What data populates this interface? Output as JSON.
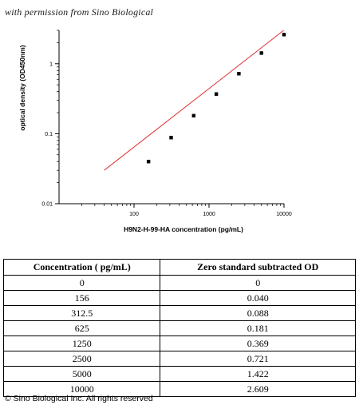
{
  "header": {
    "permission_text": "with permission from Sino Biological"
  },
  "chart_data": {
    "type": "scatter",
    "x_scale": "log",
    "y_scale": "log",
    "xlabel": "H9N2-H-99-HA concentration (pg/mL)",
    "ylabel": "optical density (OD450nm)",
    "xlim": [
      10,
      10000
    ],
    "ylim": [
      0.01,
      3
    ],
    "x_ticks": [
      100,
      1000,
      10000
    ],
    "x_tick_labels": [
      "100",
      "1000",
      "10000"
    ],
    "y_ticks": [
      0.01,
      0.1,
      1
    ],
    "y_tick_labels": [
      "0.01",
      "0.1",
      "1"
    ],
    "points": [
      {
        "x": 156,
        "y": 0.04
      },
      {
        "x": 312.5,
        "y": 0.088
      },
      {
        "x": 625,
        "y": 0.181
      },
      {
        "x": 1250,
        "y": 0.369
      },
      {
        "x": 2500,
        "y": 0.721
      },
      {
        "x": 5000,
        "y": 1.422
      },
      {
        "x": 10000,
        "y": 2.609
      }
    ],
    "fit_line": {
      "x": [
        40,
        9900
      ],
      "y": [
        0.03,
        3.0
      ]
    },
    "marker_color": "#000000",
    "line_color": "#e03030",
    "grid": false
  },
  "table": {
    "headers": [
      "Concentration ( pg/mL)",
      "Zero standard subtracted OD"
    ],
    "rows": [
      [
        "0",
        "0"
      ],
      [
        "156",
        "0.040"
      ],
      [
        "312.5",
        "0.088"
      ],
      [
        "625",
        "0.181"
      ],
      [
        "1250",
        "0.369"
      ],
      [
        "2500",
        "0.721"
      ],
      [
        "5000",
        "1.422"
      ],
      [
        "10000",
        "2.609"
      ]
    ]
  },
  "footer": {
    "copyright": "© Sino Biological Inc. All rights reserved"
  }
}
